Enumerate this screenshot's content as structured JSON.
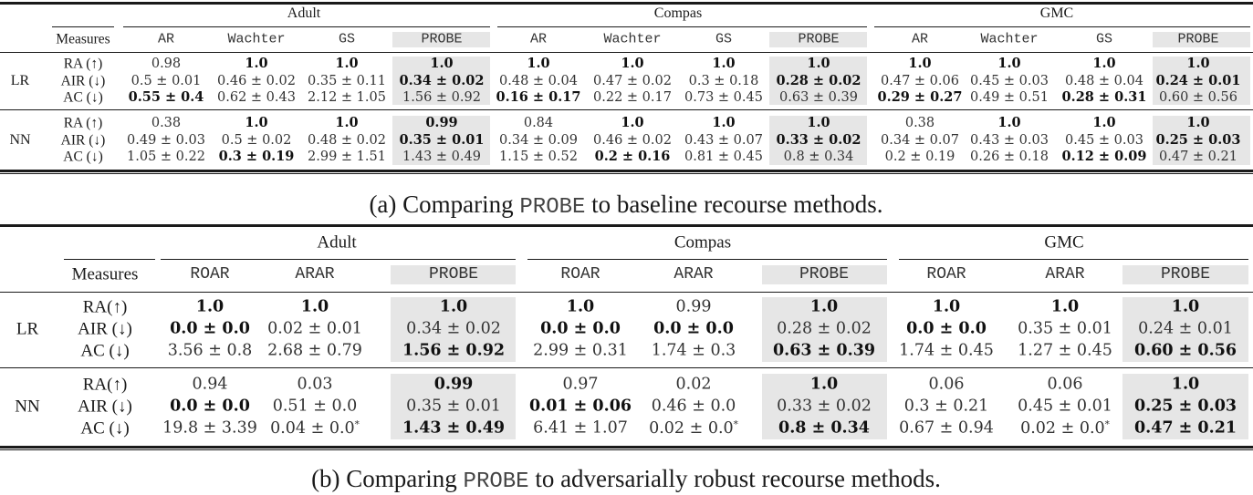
{
  "tables": [
    {
      "id": "a",
      "caption": {
        "prefix": "(a) Comparing ",
        "method": "PROBE",
        "suffix": " to baseline recourse methods."
      },
      "measures_header": "Measures",
      "datasets": [
        "Adult",
        "Compas",
        "GMC"
      ],
      "methods": [
        "AR",
        "Wachter",
        "GS",
        "PROBE"
      ],
      "highlight_method": "PROBE",
      "highlight_color": "#e6e6e6",
      "models": [
        {
          "name": "LR",
          "measures": [
            "RA (↑)",
            "AIR (↓)",
            "AC (↓)"
          ],
          "rows": [
            {
              "measure": "RA (↑)",
              "values": [
                {
                  "v": "0.98",
                  "bold": false
                },
                {
                  "v": "1.0",
                  "bold": true
                },
                {
                  "v": "1.0",
                  "bold": true
                },
                {
                  "v": "1.0",
                  "bold": true
                },
                {
                  "v": "1.0",
                  "bold": true
                },
                {
                  "v": "1.0",
                  "bold": true
                },
                {
                  "v": "1.0",
                  "bold": true
                },
                {
                  "v": "1.0",
                  "bold": true
                },
                {
                  "v": "1.0",
                  "bold": true
                },
                {
                  "v": "1.0",
                  "bold": true
                },
                {
                  "v": "1.0",
                  "bold": true
                },
                {
                  "v": "1.0",
                  "bold": true
                }
              ]
            },
            {
              "measure": "AIR (↓)",
              "values": [
                {
                  "v": "0.5 ± 0.01",
                  "bold": false
                },
                {
                  "v": "0.46 ± 0.02",
                  "bold": false
                },
                {
                  "v": "0.35 ± 0.11",
                  "bold": false
                },
                {
                  "v": "0.34 ± 0.02",
                  "bold": true
                },
                {
                  "v": "0.48 ± 0.04",
                  "bold": false
                },
                {
                  "v": "0.47 ± 0.02",
                  "bold": false
                },
                {
                  "v": "0.3 ± 0.18",
                  "bold": false
                },
                {
                  "v": "0.28 ± 0.02",
                  "bold": true
                },
                {
                  "v": "0.47 ± 0.06",
                  "bold": false
                },
                {
                  "v": "0.45 ± 0.03",
                  "bold": false
                },
                {
                  "v": "0.48 ± 0.04",
                  "bold": false
                },
                {
                  "v": "0.24 ± 0.01",
                  "bold": true
                }
              ]
            },
            {
              "measure": "AC (↓)",
              "values": [
                {
                  "v": "0.55 ± 0.4",
                  "bold": true
                },
                {
                  "v": "0.62 ± 0.43",
                  "bold": false
                },
                {
                  "v": "2.12 ± 1.05",
                  "bold": false
                },
                {
                  "v": "1.56 ± 0.92",
                  "bold": false
                },
                {
                  "v": "0.16 ± 0.17",
                  "bold": true
                },
                {
                  "v": "0.22 ± 0.17",
                  "bold": false
                },
                {
                  "v": "0.73 ± 0.45",
                  "bold": false
                },
                {
                  "v": "0.63 ± 0.39",
                  "bold": false
                },
                {
                  "v": "0.29 ± 0.27",
                  "bold": true
                },
                {
                  "v": "0.49 ± 0.51",
                  "bold": false
                },
                {
                  "v": "0.28 ± 0.31",
                  "bold": true
                },
                {
                  "v": "0.60 ± 0.56",
                  "bold": false
                }
              ]
            }
          ]
        },
        {
          "name": "NN",
          "measures": [
            "RA (↑)",
            "AIR (↓)",
            "AC (↓)"
          ],
          "rows": [
            {
              "measure": "RA (↑)",
              "values": [
                {
                  "v": "0.38",
                  "bold": false
                },
                {
                  "v": "1.0",
                  "bold": true
                },
                {
                  "v": "1.0",
                  "bold": true
                },
                {
                  "v": "0.99",
                  "bold": true
                },
                {
                  "v": "0.84",
                  "bold": false
                },
                {
                  "v": "1.0",
                  "bold": true
                },
                {
                  "v": "1.0",
                  "bold": true
                },
                {
                  "v": "1.0",
                  "bold": true
                },
                {
                  "v": "0.38",
                  "bold": false
                },
                {
                  "v": "1.0",
                  "bold": true
                },
                {
                  "v": "1.0",
                  "bold": true
                },
                {
                  "v": "1.0",
                  "bold": true
                }
              ]
            },
            {
              "measure": "AIR (↓)",
              "values": [
                {
                  "v": "0.49 ± 0.03",
                  "bold": false
                },
                {
                  "v": "0.5 ± 0.02",
                  "bold": false
                },
                {
                  "v": "0.48 ± 0.02",
                  "bold": false
                },
                {
                  "v": "0.35 ± 0.01",
                  "bold": true
                },
                {
                  "v": "0.34 ± 0.09",
                  "bold": false
                },
                {
                  "v": "0.46 ± 0.02",
                  "bold": false
                },
                {
                  "v": "0.43 ± 0.07",
                  "bold": false
                },
                {
                  "v": "0.33 ± 0.02",
                  "bold": true
                },
                {
                  "v": "0.34 ± 0.07",
                  "bold": false
                },
                {
                  "v": "0.43 ± 0.03",
                  "bold": false
                },
                {
                  "v": "0.45 ± 0.03",
                  "bold": false
                },
                {
                  "v": "0.25 ± 0.03",
                  "bold": true
                }
              ]
            },
            {
              "measure": "AC (↓)",
              "values": [
                {
                  "v": "1.05 ± 0.22",
                  "bold": false
                },
                {
                  "v": "0.3 ± 0.19",
                  "bold": true
                },
                {
                  "v": "2.99 ± 1.51",
                  "bold": false
                },
                {
                  "v": "1.43 ± 0.49",
                  "bold": false
                },
                {
                  "v": "1.15 ± 0.52",
                  "bold": false
                },
                {
                  "v": "0.2 ± 0.16",
                  "bold": true
                },
                {
                  "v": "0.81 ± 0.45",
                  "bold": false
                },
                {
                  "v": "0.8 ± 0.34",
                  "bold": false
                },
                {
                  "v": "0.2 ± 0.19",
                  "bold": false
                },
                {
                  "v": "0.26 ± 0.18",
                  "bold": false
                },
                {
                  "v": "0.12 ± 0.09",
                  "bold": true
                },
                {
                  "v": "0.47 ± 0.21",
                  "bold": false
                }
              ]
            }
          ]
        }
      ]
    },
    {
      "id": "b",
      "caption": {
        "prefix": "(b) Comparing ",
        "method": "PROBE",
        "suffix": " to adversarially robust recourse methods."
      },
      "measures_header": "Measures",
      "datasets": [
        "Adult",
        "Compas",
        "GMC"
      ],
      "methods": [
        "ROAR",
        "ARAR",
        "PROBE"
      ],
      "highlight_method": "PROBE",
      "highlight_color": "#e6e6e6",
      "models": [
        {
          "name": "LR",
          "measures": [
            "RA(↑)",
            "AIR (↓)",
            "AC (↓)"
          ],
          "rows": [
            {
              "measure": "RA(↑)",
              "values": [
                {
                  "v": "1.0",
                  "bold": true
                },
                {
                  "v": "1.0",
                  "bold": true
                },
                {
                  "v": "1.0",
                  "bold": true
                },
                {
                  "v": "1.0",
                  "bold": true
                },
                {
                  "v": "0.99",
                  "bold": false
                },
                {
                  "v": "1.0",
                  "bold": true
                },
                {
                  "v": "1.0",
                  "bold": true
                },
                {
                  "v": "1.0",
                  "bold": true
                },
                {
                  "v": "1.0",
                  "bold": true
                }
              ]
            },
            {
              "measure": "AIR (↓)",
              "values": [
                {
                  "v": "0.0 ± 0.0",
                  "bold": true
                },
                {
                  "v": "0.02 ± 0.01",
                  "bold": false
                },
                {
                  "v": "0.34 ± 0.02",
                  "bold": false
                },
                {
                  "v": "0.0 ± 0.0",
                  "bold": true
                },
                {
                  "v": "0.0 ± 0.0",
                  "bold": true
                },
                {
                  "v": "0.28 ± 0.02",
                  "bold": false
                },
                {
                  "v": "0.0 ± 0.0",
                  "bold": true
                },
                {
                  "v": "0.35 ± 0.01",
                  "bold": false
                },
                {
                  "v": "0.24 ± 0.01",
                  "bold": false
                }
              ]
            },
            {
              "measure": "AC (↓)",
              "values": [
                {
                  "v": "3.56 ± 0.8",
                  "bold": false
                },
                {
                  "v": "2.68 ± 0.79",
                  "bold": false
                },
                {
                  "v": "1.56 ± 0.92",
                  "bold": true
                },
                {
                  "v": "2.99 ± 0.31",
                  "bold": false
                },
                {
                  "v": "1.74 ± 0.3",
                  "bold": false
                },
                {
                  "v": "0.63 ± 0.39",
                  "bold": true
                },
                {
                  "v": "1.74 ± 0.45",
                  "bold": false
                },
                {
                  "v": "1.27 ± 0.45",
                  "bold": false
                },
                {
                  "v": "0.60 ± 0.56",
                  "bold": true
                }
              ]
            }
          ]
        },
        {
          "name": "NN",
          "measures": [
            "RA(↑)",
            "AIR (↓)",
            "AC (↓)"
          ],
          "rows": [
            {
              "measure": "RA(↑)",
              "values": [
                {
                  "v": "0.94",
                  "bold": false
                },
                {
                  "v": "0.03",
                  "bold": false
                },
                {
                  "v": "0.99",
                  "bold": true
                },
                {
                  "v": "0.97",
                  "bold": false
                },
                {
                  "v": "0.02",
                  "bold": false
                },
                {
                  "v": "1.0",
                  "bold": true
                },
                {
                  "v": "0.06",
                  "bold": false
                },
                {
                  "v": "0.06",
                  "bold": false
                },
                {
                  "v": "1.0",
                  "bold": true
                }
              ]
            },
            {
              "measure": "AIR (↓)",
              "values": [
                {
                  "v": "0.0 ± 0.0",
                  "bold": true
                },
                {
                  "v": "0.51 ± 0.0",
                  "bold": false
                },
                {
                  "v": "0.35 ± 0.01",
                  "bold": false
                },
                {
                  "v": "0.01 ± 0.06",
                  "bold": true
                },
                {
                  "v": "0.46 ± 0.0",
                  "bold": false
                },
                {
                  "v": "0.33 ± 0.02",
                  "bold": false
                },
                {
                  "v": "0.3 ± 0.21",
                  "bold": false
                },
                {
                  "v": "0.45 ± 0.01",
                  "bold": false
                },
                {
                  "v": "0.25 ± 0.03",
                  "bold": true
                }
              ]
            },
            {
              "measure": "AC (↓)",
              "values": [
                {
                  "v": "19.8 ± 3.39",
                  "bold": false
                },
                {
                  "v": "0.04 ± 0.0*",
                  "bold": false
                },
                {
                  "v": "1.43 ± 0.49",
                  "bold": true
                },
                {
                  "v": "6.41 ± 1.07",
                  "bold": false
                },
                {
                  "v": "0.02 ± 0.0*",
                  "bold": false
                },
                {
                  "v": "0.8 ± 0.34",
                  "bold": true
                },
                {
                  "v": "0.67 ± 0.94",
                  "bold": false
                },
                {
                  "v": "0.02 ± 0.0*",
                  "bold": false
                },
                {
                  "v": "0.47 ± 0.21",
                  "bold": true
                }
              ]
            }
          ]
        }
      ]
    }
  ]
}
